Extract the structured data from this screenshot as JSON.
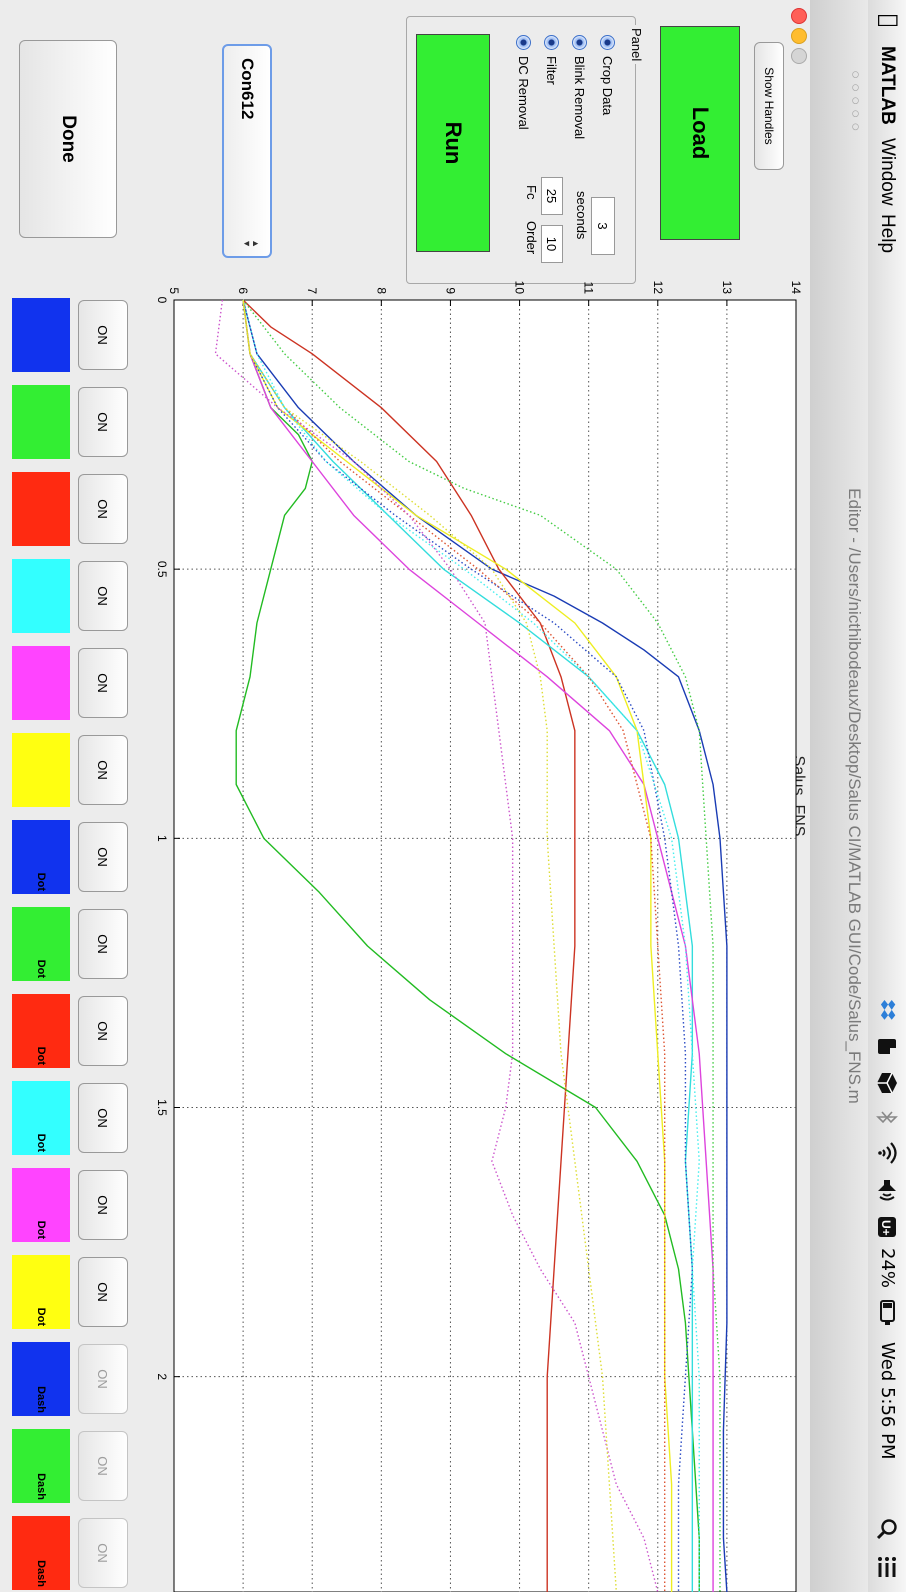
{
  "menubar": {
    "apple_icon": "apple-icon",
    "app_name": "MATLAB",
    "menus": [
      "Window",
      "Help"
    ],
    "battery_label": "24%",
    "clock": "Wed 5:56 PM"
  },
  "window": {
    "title": "Editor - /Users/nicthibodeaux/Desktop/Salus CI/MATLAB GUI/Code/Salus_FNS.m",
    "figure_title": "Salus_FNS"
  },
  "controls": {
    "show_handles_label": "Show Handles",
    "load_label": "Load",
    "run_label": "Run",
    "done_label": "Done",
    "panel_title": "Panel",
    "options": [
      "DC Removal",
      "Filter",
      "Blink Removal",
      "Crop Data"
    ],
    "fc_label": "Fc",
    "fc_value": "25",
    "order_label": "Order",
    "order_value": "10",
    "seconds_label": "seconds",
    "seconds_value": "3",
    "subject_selected": "Con612"
  },
  "channels": [
    {
      "state": "ON",
      "enabled": true,
      "color": "#1133ee",
      "style": ""
    },
    {
      "state": "ON",
      "enabled": true,
      "color": "#33ee33",
      "style": ""
    },
    {
      "state": "ON",
      "enabled": true,
      "color": "#ff2a11",
      "style": ""
    },
    {
      "state": "ON",
      "enabled": true,
      "color": "#33ffff",
      "style": ""
    },
    {
      "state": "ON",
      "enabled": true,
      "color": "#ff44ff",
      "style": ""
    },
    {
      "state": "ON",
      "enabled": true,
      "color": "#ffff11",
      "style": ""
    },
    {
      "state": "ON",
      "enabled": true,
      "color": "#1133ee",
      "style": "Dot"
    },
    {
      "state": "ON",
      "enabled": true,
      "color": "#33ee33",
      "style": "Dot"
    },
    {
      "state": "ON",
      "enabled": true,
      "color": "#ff2a11",
      "style": "Dot"
    },
    {
      "state": "ON",
      "enabled": true,
      "color": "#33ffff",
      "style": "Dot"
    },
    {
      "state": "ON",
      "enabled": true,
      "color": "#ff44ff",
      "style": "Dot"
    },
    {
      "state": "ON",
      "enabled": true,
      "color": "#ffff11",
      "style": "Dot"
    },
    {
      "state": "ON",
      "enabled": false,
      "color": "#1133ee",
      "style": "Dash"
    },
    {
      "state": "ON",
      "enabled": false,
      "color": "#33ee33",
      "style": "Dash"
    },
    {
      "state": "ON",
      "enabled": false,
      "color": "#ff2a11",
      "style": "Dash"
    }
  ],
  "chart_data": {
    "type": "line",
    "title": "",
    "xlabel": "",
    "ylabel": "",
    "xlim": [
      0,
      2.4
    ],
    "ylim": [
      5,
      14
    ],
    "xticks": [
      "0",
      "0.5",
      "1",
      "1.5",
      "2"
    ],
    "yticks": [
      "5",
      "6",
      "7",
      "8",
      "9",
      "10",
      "11",
      "12",
      "13",
      "14"
    ],
    "grid": true,
    "series": [
      {
        "color": "#1a3cb4",
        "style": "solid",
        "x": [
          0,
          0.1,
          0.2,
          0.3,
          0.4,
          0.5,
          0.55,
          0.6,
          0.65,
          0.7,
          0.8,
          0.9,
          1.0,
          1.1,
          1.2,
          1.3,
          1.5,
          1.7,
          1.9,
          2.1,
          2.3,
          2.4
        ],
        "y": [
          6,
          6.2,
          6.8,
          7.6,
          8.5,
          9.6,
          10.5,
          11.2,
          11.8,
          12.3,
          12.6,
          12.8,
          12.9,
          12.95,
          13.0,
          13.0,
          13.0,
          13.0,
          13.0,
          12.95,
          12.95,
          13.0
        ]
      },
      {
        "color": "#22bb22",
        "style": "solid",
        "x": [
          0,
          0.1,
          0.2,
          0.25,
          0.3,
          0.35,
          0.4,
          0.5,
          0.6,
          0.7,
          0.8,
          0.9,
          1.0,
          1.1,
          1.2,
          1.3,
          1.4,
          1.5,
          1.6,
          1.7,
          1.8,
          1.9,
          2.0,
          2.1,
          2.2,
          2.3,
          2.4
        ],
        "y": [
          6,
          6.1,
          6.4,
          6.8,
          7.0,
          6.9,
          6.6,
          6.4,
          6.2,
          6.1,
          5.9,
          5.9,
          6.3,
          7.1,
          7.8,
          8.7,
          9.8,
          11.1,
          11.7,
          12.1,
          12.3,
          12.4,
          12.45,
          12.5,
          12.55,
          12.6,
          12.6
        ]
      },
      {
        "color": "#cc3322",
        "style": "solid",
        "x": [
          0,
          0.05,
          0.1,
          0.2,
          0.3,
          0.4,
          0.5,
          0.6,
          0.7,
          0.8,
          1.0,
          1.2,
          1.4,
          1.6,
          1.8,
          2.0,
          2.2,
          2.4
        ],
        "y": [
          6,
          6.4,
          7.0,
          8.0,
          8.8,
          9.3,
          9.7,
          10.3,
          10.6,
          10.8,
          10.8,
          10.8,
          10.7,
          10.6,
          10.5,
          10.4,
          10.4,
          10.4
        ]
      },
      {
        "color": "#33dddd",
        "style": "solid",
        "x": [
          0,
          0.1,
          0.2,
          0.3,
          0.4,
          0.5,
          0.6,
          0.7,
          0.8,
          0.9,
          1.0,
          1.1,
          1.2,
          1.4,
          1.6,
          1.8,
          2.0,
          2.2,
          2.4
        ],
        "y": [
          6,
          6.1,
          6.6,
          7.3,
          8.1,
          8.9,
          10.0,
          11.0,
          11.7,
          12.1,
          12.3,
          12.4,
          12.5,
          12.5,
          12.4,
          12.5,
          12.5,
          12.5,
          12.5
        ]
      },
      {
        "color": "#dd44dd",
        "style": "solid",
        "x": [
          0,
          0.1,
          0.2,
          0.3,
          0.4,
          0.5,
          0.6,
          0.7,
          0.8,
          0.9,
          1.0,
          1.1,
          1.2,
          1.4,
          1.6,
          1.8,
          2.0,
          2.2,
          2.4
        ],
        "y": [
          6,
          6.1,
          6.4,
          7.0,
          7.6,
          8.4,
          9.4,
          10.4,
          11.3,
          11.8,
          12.0,
          12.2,
          12.4,
          12.6,
          12.7,
          12.8,
          12.8,
          12.8,
          12.8
        ]
      },
      {
        "color": "#eeee22",
        "style": "solid",
        "x": [
          0,
          0.1,
          0.2,
          0.3,
          0.4,
          0.5,
          0.6,
          0.7,
          0.8,
          0.9,
          1.0,
          1.2,
          1.4,
          1.6,
          1.8,
          2.0,
          2.2,
          2.4
        ],
        "y": [
          6,
          6.1,
          6.5,
          7.5,
          8.5,
          9.8,
          10.8,
          11.4,
          11.7,
          11.8,
          11.9,
          11.9,
          12.0,
          12.1,
          12.1,
          12.1,
          12.2,
          12.2
        ]
      },
      {
        "color": "#2a4ac4",
        "style": "dot",
        "x": [
          0,
          0.1,
          0.2,
          0.3,
          0.4,
          0.5,
          0.6,
          0.7,
          0.8,
          1.0,
          1.2,
          1.4,
          1.6,
          1.8,
          2.0,
          2.2,
          2.4
        ],
        "y": [
          6,
          6.1,
          6.5,
          7.2,
          8.2,
          9.3,
          10.5,
          11.4,
          11.8,
          12.1,
          12.3,
          12.4,
          12.4,
          12.5,
          12.4,
          12.3,
          12.3
        ]
      },
      {
        "color": "#44cc44",
        "style": "dot",
        "x": [
          0,
          0.1,
          0.2,
          0.3,
          0.35,
          0.4,
          0.5,
          0.6,
          0.7,
          0.8,
          1.0,
          1.2,
          1.4,
          1.6,
          1.8,
          2.0,
          2.2,
          2.4
        ],
        "y": [
          6,
          6.6,
          7.4,
          8.4,
          9.2,
          10.3,
          11.4,
          12.0,
          12.4,
          12.6,
          12.7,
          12.8,
          12.8,
          12.8,
          12.8,
          12.9,
          12.9,
          12.9
        ]
      },
      {
        "color": "#dd5533",
        "style": "dot",
        "x": [
          0,
          0.1,
          0.2,
          0.3,
          0.4,
          0.5,
          0.6,
          0.7,
          0.8,
          1.0,
          1.2,
          1.4,
          1.6,
          1.8,
          2.0,
          2.2,
          2.4
        ],
        "y": [
          6,
          6.1,
          6.6,
          7.4,
          8.4,
          9.4,
          10.3,
          11.0,
          11.5,
          11.9,
          12.0,
          12.1,
          12.1,
          12.1,
          12.1,
          12.1,
          12.1
        ]
      },
      {
        "color": "#44eeee",
        "style": "dot",
        "x": [
          0,
          0.1,
          0.2,
          0.3,
          0.4,
          0.5,
          0.6,
          0.7,
          0.8,
          1.0,
          1.2,
          1.4,
          1.6,
          1.8,
          2.0,
          2.2,
          2.4
        ],
        "y": [
          6,
          6.2,
          6.6,
          7.2,
          8.1,
          9.2,
          10.2,
          11.0,
          11.7,
          12.2,
          12.4,
          12.5,
          12.6,
          12.5,
          12.6,
          12.6,
          12.6
        ]
      },
      {
        "color": "#cc55cc",
        "style": "dot",
        "x": [
          0,
          0.1,
          0.2,
          0.3,
          0.4,
          0.5,
          0.6,
          0.7,
          0.8,
          0.9,
          1.0,
          1.2,
          1.4,
          1.5,
          1.6,
          1.7,
          1.8,
          1.9,
          2.0,
          2.1,
          2.2,
          2.3,
          2.4
        ],
        "y": [
          5.7,
          5.6,
          6.5,
          7.6,
          8.4,
          9.0,
          9.5,
          9.6,
          9.7,
          9.8,
          9.9,
          9.9,
          9.9,
          9.8,
          9.6,
          9.9,
          10.3,
          10.8,
          11.0,
          11.2,
          11.4,
          11.8,
          12.0
        ]
      },
      {
        "color": "#dddd33",
        "style": "dot",
        "x": [
          0,
          0.1,
          0.2,
          0.3,
          0.4,
          0.5,
          0.6,
          0.7,
          0.8,
          0.9,
          1.0,
          1.2,
          1.4,
          1.6,
          1.8,
          2.0,
          2.2,
          2.4
        ],
        "y": [
          6,
          6.1,
          6.6,
          7.7,
          8.7,
          9.6,
          10.1,
          10.3,
          10.4,
          10.4,
          10.4,
          10.5,
          10.6,
          10.8,
          11.0,
          11.2,
          11.3,
          11.4
        ]
      }
    ]
  }
}
